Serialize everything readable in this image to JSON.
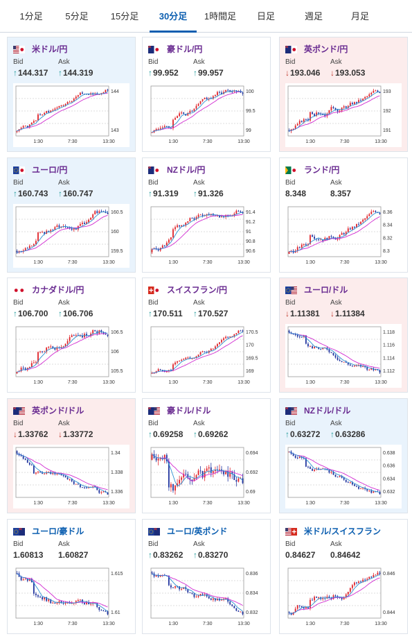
{
  "tabs": [
    {
      "label": "1分足",
      "active": false
    },
    {
      "label": "5分足",
      "active": false
    },
    {
      "label": "15分足",
      "active": false
    },
    {
      "label": "30分足",
      "active": true
    },
    {
      "label": "1時間足",
      "active": false
    },
    {
      "label": "日足",
      "active": false
    },
    {
      "label": "週足",
      "active": false
    },
    {
      "label": "月足",
      "active": false
    }
  ],
  "labels": {
    "bid": "Bid",
    "ask": "Ask"
  },
  "colors": {
    "card_blue": "#e9f3fc",
    "card_pink": "#fcecec",
    "up": "#1f9a9a",
    "down": "#c0392b",
    "candle_up": "#e0242b",
    "candle_down": "#2336a0",
    "ma_line": "#d12bd1",
    "pair_purple": "#6a2c91",
    "pair_blue": "#0b5eb0"
  },
  "cards": [
    {
      "pair": "米ドル/円",
      "flag": "us-jp-flag-icon",
      "bg": "blue",
      "bid": "144.317",
      "ask": "144.319",
      "bid_dir": "up",
      "ask_dir": "up",
      "pair_color": "purple",
      "chart": {
        "xticks": [
          "1:30",
          "7:30",
          "13:30"
        ],
        "yticks": [
          "144",
          "143"
        ],
        "trend": "up",
        "seed": 1
      }
    },
    {
      "pair": "豪ドル/円",
      "flag": "au-jp-flag-icon",
      "bg": "white",
      "bid": "99.952",
      "ask": "99.957",
      "bid_dir": "up",
      "ask_dir": "up",
      "pair_color": "purple",
      "chart": {
        "xticks": [
          "1:30",
          "7:30",
          "13:30"
        ],
        "yticks": [
          "100",
          "99.5",
          "99"
        ],
        "trend": "up",
        "seed": 2
      }
    },
    {
      "pair": "英ポンド/円",
      "flag": "gb-jp-flag-icon",
      "bg": "pink",
      "bid": "193.046",
      "ask": "193.053",
      "bid_dir": "down",
      "ask_dir": "down",
      "pair_color": "purple",
      "chart": {
        "xticks": [
          "1:30",
          "7:30",
          "13:30"
        ],
        "yticks": [
          "193",
          "192",
          "191"
        ],
        "trend": "up",
        "seed": 3
      }
    },
    {
      "pair": "ユーロ/円",
      "flag": "eu-jp-flag-icon",
      "bg": "blue",
      "bid": "160.743",
      "ask": "160.747",
      "bid_dir": "up",
      "ask_dir": "up",
      "pair_color": "purple",
      "chart": {
        "xticks": [
          "1:30",
          "7:30",
          "13:30"
        ],
        "yticks": [
          "160.5",
          "160",
          "159.5"
        ],
        "trend": "up",
        "seed": 4
      }
    },
    {
      "pair": "NZドル/円",
      "flag": "nz-jp-flag-icon",
      "bg": "white",
      "bid": "91.319",
      "ask": "91.326",
      "bid_dir": "up",
      "ask_dir": "up",
      "pair_color": "purple",
      "chart": {
        "xticks": [
          "1:30",
          "7:30",
          "13:30"
        ],
        "yticks": [
          "91.4",
          "91.2",
          "91",
          "90.8",
          "90.6"
        ],
        "trend": "up",
        "seed": 5
      }
    },
    {
      "pair": "ランド/円",
      "flag": "za-jp-flag-icon",
      "bg": "white",
      "bid": "8.348",
      "ask": "8.357",
      "bid_dir": "none",
      "ask_dir": "none",
      "pair_color": "purple",
      "chart": {
        "xticks": [
          "1:30",
          "7:30",
          "13:30"
        ],
        "yticks": [
          "8.36",
          "8.34",
          "8.32",
          "8.3"
        ],
        "trend": "up",
        "seed": 6
      }
    },
    {
      "pair": "カナダドル/円",
      "flag": "ca-jp-flag-icon",
      "bg": "white",
      "bid": "106.700",
      "ask": "106.706",
      "bid_dir": "up",
      "ask_dir": "up",
      "pair_color": "purple",
      "chart": {
        "xticks": [
          "1:30",
          "7:30",
          "13:30"
        ],
        "yticks": [
          "106.5",
          "106",
          "105.5"
        ],
        "trend": "up",
        "seed": 7
      }
    },
    {
      "pair": "スイスフラン/円",
      "flag": "ch-jp-flag-icon",
      "bg": "white",
      "bid": "170.511",
      "ask": "170.527",
      "bid_dir": "up",
      "ask_dir": "up",
      "pair_color": "purple",
      "chart": {
        "xticks": [
          "1:30",
          "7:30",
          "13:30"
        ],
        "yticks": [
          "170.5",
          "170",
          "169.5",
          "169"
        ],
        "trend": "up",
        "seed": 8
      }
    },
    {
      "pair": "ユーロ/ドル",
      "flag": "eu-us-flag-icon",
      "bg": "pink",
      "bid": "1.11381",
      "ask": "1.11384",
      "bid_dir": "down",
      "ask_dir": "down",
      "pair_color": "purple",
      "chart": {
        "xticks": [
          "1:30",
          "7:30",
          "13:30"
        ],
        "yticks": [
          "1.118",
          "1.116",
          "1.114",
          "1.112"
        ],
        "trend": "down",
        "seed": 9
      }
    },
    {
      "pair": "英ポンド/ドル",
      "flag": "gb-us-flag-icon",
      "bg": "pink",
      "bid": "1.33762",
      "ask": "1.33772",
      "bid_dir": "down",
      "ask_dir": "down",
      "pair_color": "purple",
      "chart": {
        "xticks": [
          "1:30",
          "7:30",
          "13:30"
        ],
        "yticks": [
          "1.34",
          "1.338",
          "1.336"
        ],
        "trend": "down",
        "seed": 10
      }
    },
    {
      "pair": "豪ドル/ドル",
      "flag": "au-us-flag-icon",
      "bg": "white",
      "bid": "0.69258",
      "ask": "0.69262",
      "bid_dir": "up",
      "ask_dir": "up",
      "pair_color": "purple",
      "chart": {
        "xticks": [
          "1:30",
          "7:30",
          "13:30"
        ],
        "yticks": [
          "0.694",
          "0.692",
          "0.69"
        ],
        "trend": "flat",
        "seed": 11
      }
    },
    {
      "pair": "NZドル/ドル",
      "flag": "nz-us-flag-icon",
      "bg": "blue",
      "bid": "0.63272",
      "ask": "0.63286",
      "bid_dir": "up",
      "ask_dir": "up",
      "pair_color": "purple",
      "chart": {
        "xticks": [
          "1:30",
          "7:30",
          "13:30"
        ],
        "yticks": [
          "0.638",
          "0.636",
          "0.634",
          "0.632"
        ],
        "trend": "down",
        "seed": 12
      }
    },
    {
      "pair": "ユーロ/豪ドル",
      "flag": "eu-au-flag-icon",
      "bg": "white",
      "bid": "1.60813",
      "ask": "1.60827",
      "bid_dir": "none",
      "ask_dir": "none",
      "pair_color": "blue",
      "chart": {
        "xticks": [
          "1:30",
          "7:30",
          "13:30"
        ],
        "yticks": [
          "1.615",
          "1.61"
        ],
        "trend": "down",
        "seed": 13
      }
    },
    {
      "pair": "ユーロ/英ポンド",
      "flag": "eu-gb-flag-icon",
      "bg": "white",
      "bid": "0.83262",
      "ask": "0.83270",
      "bid_dir": "up",
      "ask_dir": "up",
      "pair_color": "blue",
      "chart": {
        "xticks": [
          "1:30",
          "7:30",
          "13:30"
        ],
        "yticks": [
          "0.836",
          "0.834",
          "0.832"
        ],
        "trend": "down",
        "seed": 14
      }
    },
    {
      "pair": "米ドル/スイスフラン",
      "flag": "us-ch-flag-icon",
      "bg": "white",
      "bid": "0.84627",
      "ask": "0.84642",
      "bid_dir": "none",
      "ask_dir": "none",
      "pair_color": "blue",
      "chart": {
        "xticks": [
          "1:30",
          "7:30",
          "13:30"
        ],
        "yticks": [
          "0.846",
          "0.844"
        ],
        "trend": "up",
        "seed": 15
      }
    }
  ]
}
